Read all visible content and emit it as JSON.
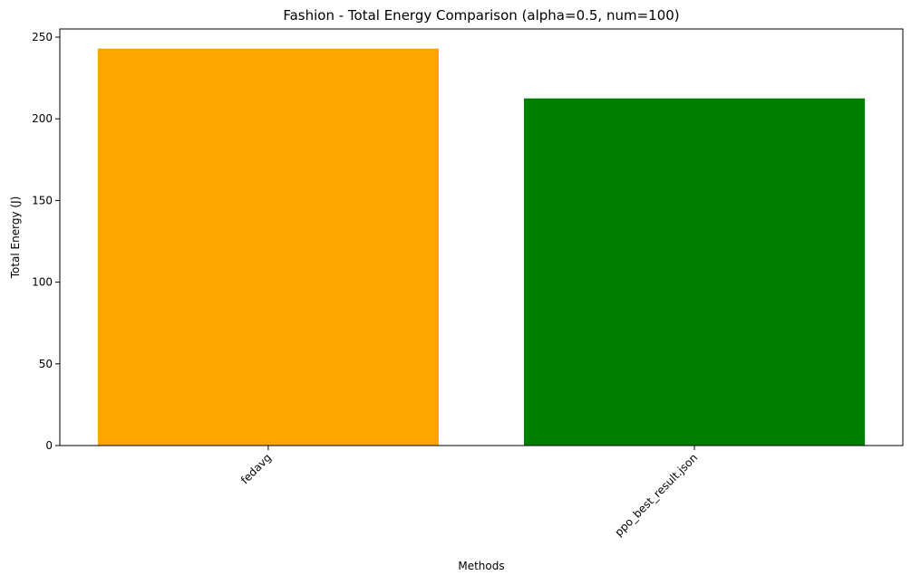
{
  "chart_data": {
    "type": "bar",
    "title": "Fashion - Total Energy Comparison (alpha=0.5, num=100)",
    "xlabel": "Methods",
    "ylabel": "Total Energy (J)",
    "categories": [
      "fedavg",
      "ppo_best_result.json"
    ],
    "values": [
      243,
      212.5
    ],
    "colors": [
      "#ffa500",
      "#008000"
    ],
    "ylim": [
      0,
      255
    ],
    "yticks": [
      0,
      50,
      100,
      150,
      200,
      250
    ],
    "grid": false,
    "legend": "none"
  }
}
